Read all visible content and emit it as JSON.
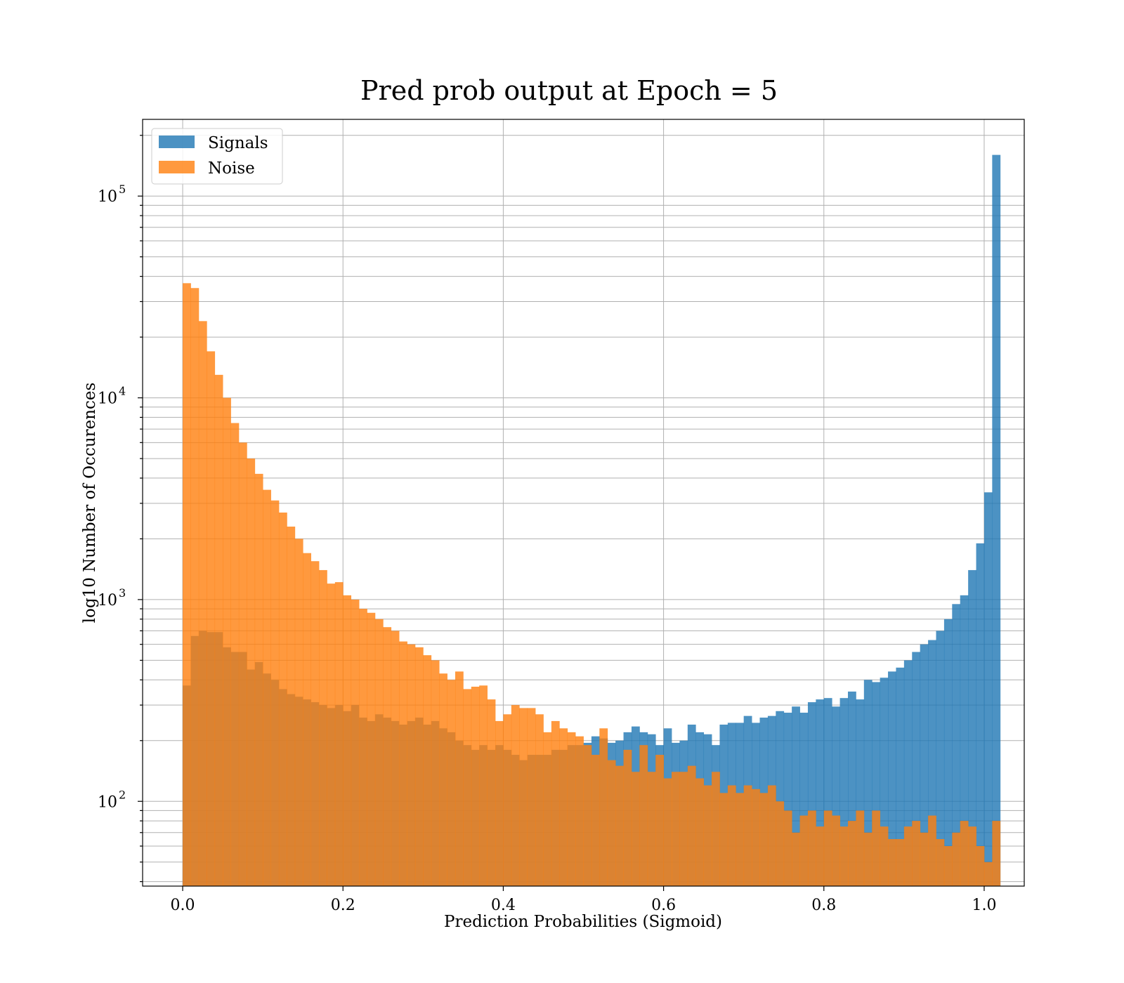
{
  "chart_data": {
    "type": "bar",
    "title": "Pred prob output at Epoch = 5",
    "xlabel": "Prediction Probabilities (Sigmoid)",
    "ylabel": "log10 Number of Occurences",
    "xlim": [
      -0.05,
      1.05
    ],
    "ylim": [
      38,
      240000
    ],
    "yscale": "log",
    "grid": true,
    "legend_position": "upper-left",
    "bin_start": 0.0,
    "bin_width": 0.01,
    "x_ticks": [
      "0.0",
      "0.2",
      "0.4",
      "0.6",
      "0.8",
      "1.0"
    ],
    "y_ticks": [
      {
        "base": "10",
        "exp": "2"
      },
      {
        "base": "10",
        "exp": "3"
      },
      {
        "base": "10",
        "exp": "4"
      },
      {
        "base": "10",
        "exp": "5"
      }
    ],
    "series": [
      {
        "name": "Signals",
        "color": "#1f77b4",
        "values": [
          375,
          660,
          700,
          690,
          690,
          580,
          550,
          550,
          450,
          490,
          430,
          400,
          360,
          340,
          330,
          320,
          310,
          300,
          290,
          300,
          280,
          300,
          260,
          250,
          270,
          260,
          250,
          240,
          250,
          260,
          240,
          250,
          230,
          220,
          200,
          190,
          180,
          190,
          180,
          190,
          180,
          170,
          160,
          170,
          170,
          170,
          180,
          180,
          190,
          190,
          195,
          210,
          205,
          195,
          200,
          220,
          235,
          220,
          215,
          190,
          230,
          195,
          200,
          240,
          220,
          215,
          190,
          240,
          245,
          245,
          265,
          245,
          260,
          265,
          280,
          275,
          295,
          275,
          310,
          320,
          325,
          295,
          325,
          350,
          320,
          400,
          390,
          410,
          440,
          460,
          500,
          550,
          600,
          630,
          700,
          800,
          950,
          1050,
          1400,
          1900,
          3400,
          160000
        ]
      },
      {
        "name": "Noise",
        "color": "#ff7f0e",
        "values": [
          37000,
          35000,
          24000,
          17000,
          13000,
          10000,
          7500,
          6000,
          5000,
          4200,
          3500,
          3100,
          2700,
          2300,
          2000,
          1700,
          1550,
          1400,
          1200,
          1220,
          1050,
          1000,
          900,
          860,
          800,
          730,
          700,
          620,
          600,
          580,
          530,
          500,
          430,
          400,
          440,
          360,
          370,
          375,
          320,
          250,
          270,
          300,
          290,
          290,
          270,
          220,
          250,
          230,
          220,
          210,
          190,
          170,
          230,
          160,
          150,
          180,
          140,
          190,
          140,
          170,
          130,
          140,
          140,
          150,
          130,
          120,
          140,
          110,
          120,
          110,
          120,
          115,
          110,
          120,
          100,
          90,
          70,
          85,
          90,
          75,
          90,
          85,
          75,
          80,
          90,
          70,
          90,
          75,
          65,
          65,
          75,
          80,
          70,
          85,
          65,
          60,
          70,
          80,
          75,
          60,
          50,
          80
        ]
      }
    ]
  }
}
